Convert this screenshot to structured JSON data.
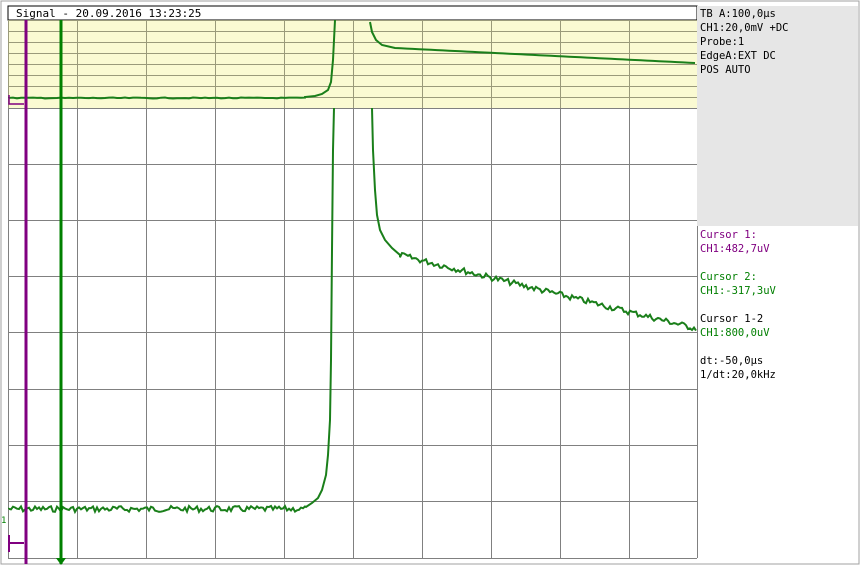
{
  "window": {
    "title": "Signal - 20.09.2016 13:23:25"
  },
  "settings": {
    "lines": [
      "TB A:100,0µs",
      "CH1:20,0mV +DC",
      "Probe:1",
      "EdgeA:EXT DC",
      "POS AUTO"
    ]
  },
  "cursor1": {
    "label": "Cursor 1:",
    "value": "CH1:482,7uV"
  },
  "cursor2": {
    "label": "Cursor 2:",
    "value": "CH1:-317,3uV"
  },
  "cursor_diff": {
    "label": "Cursor 1-2",
    "value": "CH1:800,0uV"
  },
  "timing": {
    "dt": "dt:-50,0µs",
    "inv_dt": "1/dt:20,0kHz"
  },
  "markers": {
    "channel": "1"
  },
  "colors": {
    "trace": "#1a7f1a",
    "cursor1": "#800080",
    "cursor2": "#008000",
    "overview_bg": "#fafad2",
    "grid": "#808080"
  }
}
